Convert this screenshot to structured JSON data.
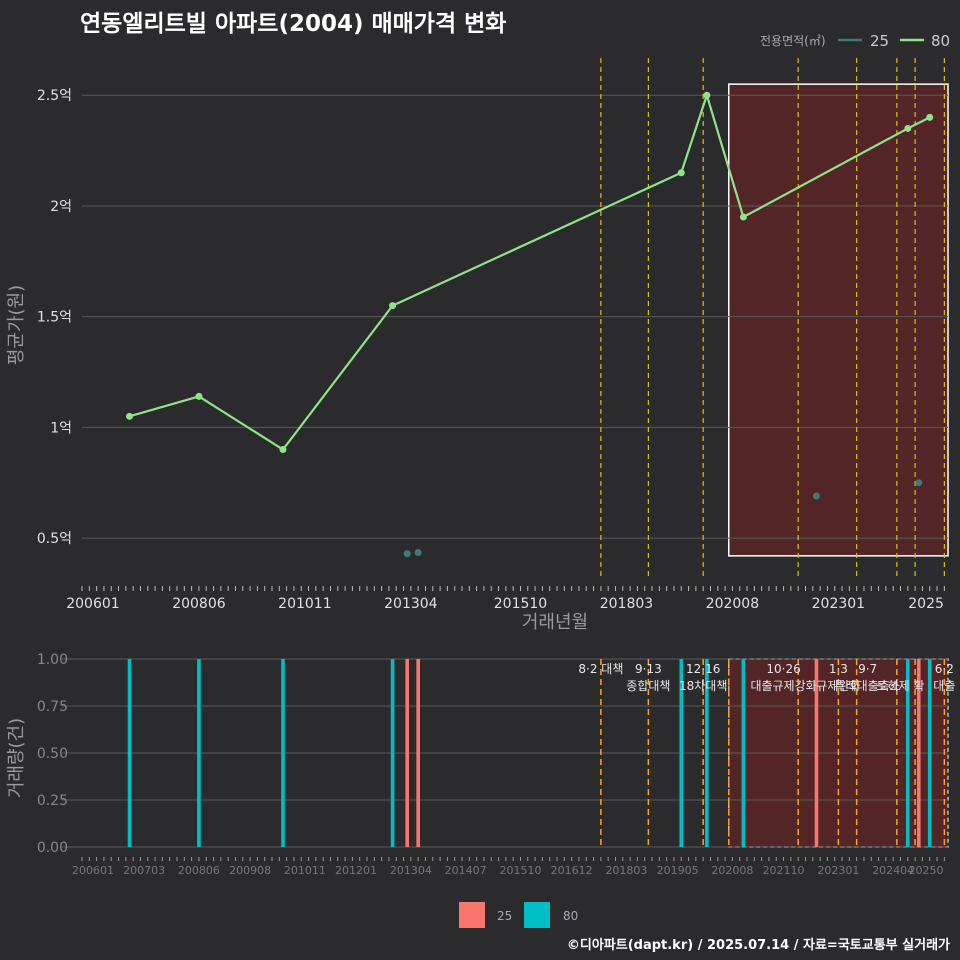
{
  "title": "연동엘리트빌 아파트(2004) 매매가격 변화",
  "footer": "©디아파트(dapt.kr) / 2025.07.14 / 자료=국토교통부 실거래가",
  "colors": {
    "background": "#2b2b2d",
    "grid": "#5a5a5a",
    "series_25": "#f8766d",
    "series_80": "#00bfc4",
    "line_80": "#8fe388",
    "dot_25": "#3f7a74",
    "policy_line": "#d6c21a",
    "policy_line_bottom": "#f5a623",
    "highlight_fill": "#5a2426",
    "highlight_border": "#ffffff"
  },
  "chart_data": [
    {
      "type": "line",
      "title": "연동엘리트빌 아파트(2004) 매매가격 변화",
      "xlabel": "거래년월",
      "ylabel": "평균가(원)",
      "x_ticks": [
        "200601",
        "200806",
        "201011",
        "201304",
        "201510",
        "201803",
        "202008",
        "202301",
        "2025"
      ],
      "y_ticks": [
        "0.5억",
        "1억",
        "1.5억",
        "2억",
        "2.5억"
      ],
      "y_tick_values": [
        0.5,
        1,
        1.5,
        2,
        2.5
      ],
      "ylim": [
        0.32,
        2.65
      ],
      "xlim": [
        "2005-10",
        "2025-07"
      ],
      "legend": {
        "title": "전용면적(㎡)",
        "position": "top-right",
        "entries": [
          "25",
          "80"
        ]
      },
      "grid": true,
      "series": [
        {
          "name": "80",
          "points": [
            {
              "x": "2006-11",
              "y": 1.05
            },
            {
              "x": "2008-06",
              "y": 1.14
            },
            {
              "x": "2010-05",
              "y": 0.9
            },
            {
              "x": "2012-11",
              "y": 1.55
            },
            {
              "x": "2019-06",
              "y": 2.15
            },
            {
              "x": "2020-01",
              "y": 2.5
            },
            {
              "x": "2020-11",
              "y": 1.95
            },
            {
              "x": "2024-08",
              "y": 2.35
            },
            {
              "x": "2025-02",
              "y": 2.4
            }
          ]
        },
        {
          "name": "25",
          "points": [
            {
              "x": "2013-03",
              "y": 0.43
            },
            {
              "x": "2013-06",
              "y": 0.435
            },
            {
              "x": "2022-07",
              "y": 0.69
            },
            {
              "x": "2024-11",
              "y": 0.75
            }
          ]
        }
      ],
      "policy_dates": [
        "2017-08",
        "2018-09",
        "2019-12",
        "2022-02",
        "2023-06",
        "2024-05",
        "2024-10",
        "2025-06"
      ],
      "highlight_range": [
        "2020-07",
        "2025-07"
      ]
    },
    {
      "type": "bar",
      "ylabel": "거래량(건)",
      "y_ticks": [
        "0.00",
        "0.25",
        "0.50",
        "0.75",
        "1.00"
      ],
      "y_tick_values": [
        0,
        0.25,
        0.5,
        0.75,
        1.0
      ],
      "ylim": [
        0,
        1.05
      ],
      "x_ticks": [
        "200601",
        "200703",
        "200806",
        "200908",
        "201011",
        "201201",
        "201304",
        "201407",
        "201510",
        "201612",
        "201803",
        "201905",
        "202008",
        "202110",
        "202301",
        "202404",
        "20250"
      ],
      "xlim": [
        "2005-10",
        "2025-07"
      ],
      "legend": {
        "position": "bottom",
        "entries": [
          "25",
          "80"
        ]
      },
      "series": [
        {
          "name": "25",
          "bars": [
            {
              "x": "2013-03",
              "y": 1
            },
            {
              "x": "2013-06",
              "y": 1
            },
            {
              "x": "2022-07",
              "y": 1
            },
            {
              "x": "2024-11",
              "y": 1
            }
          ]
        },
        {
          "name": "80",
          "bars": [
            {
              "x": "2006-11",
              "y": 1
            },
            {
              "x": "2008-06",
              "y": 1
            },
            {
              "x": "2010-05",
              "y": 1
            },
            {
              "x": "2012-11",
              "y": 1
            },
            {
              "x": "2019-06",
              "y": 1
            },
            {
              "x": "2020-01",
              "y": 1
            },
            {
              "x": "2020-11",
              "y": 1
            },
            {
              "x": "2024-08",
              "y": 1
            },
            {
              "x": "2025-02",
              "y": 1
            }
          ]
        }
      ],
      "policy_dates": [
        "2017-08",
        "2018-09",
        "2019-12",
        "2020-07",
        "2022-02",
        "2023-01",
        "2023-06",
        "2024-05",
        "2024-10",
        "2025-06"
      ],
      "annotations": [
        {
          "x": "2017-08",
          "lines": [
            "8·2 대책"
          ]
        },
        {
          "x": "2018-09",
          "lines": [
            "9·13",
            "종합대책"
          ]
        },
        {
          "x": "2019-12",
          "lines": [
            "12·16",
            "18차대책"
          ]
        },
        {
          "x": "2021-10",
          "lines": [
            "10·26",
            "대출규제강화"
          ]
        },
        {
          "x": "2023-01",
          "lines": [
            "1·3",
            "규제완화"
          ]
        },
        {
          "x": "2023-09",
          "lines": [
            "9·7",
            "특례대출축소"
          ]
        },
        {
          "x": "2024-06",
          "lines": [
            "",
            "토허제 확"
          ]
        },
        {
          "x": "2025-06",
          "lines": [
            "6·2",
            "대출"
          ]
        }
      ],
      "highlight_range": [
        "2020-07",
        "2025-07"
      ]
    }
  ]
}
